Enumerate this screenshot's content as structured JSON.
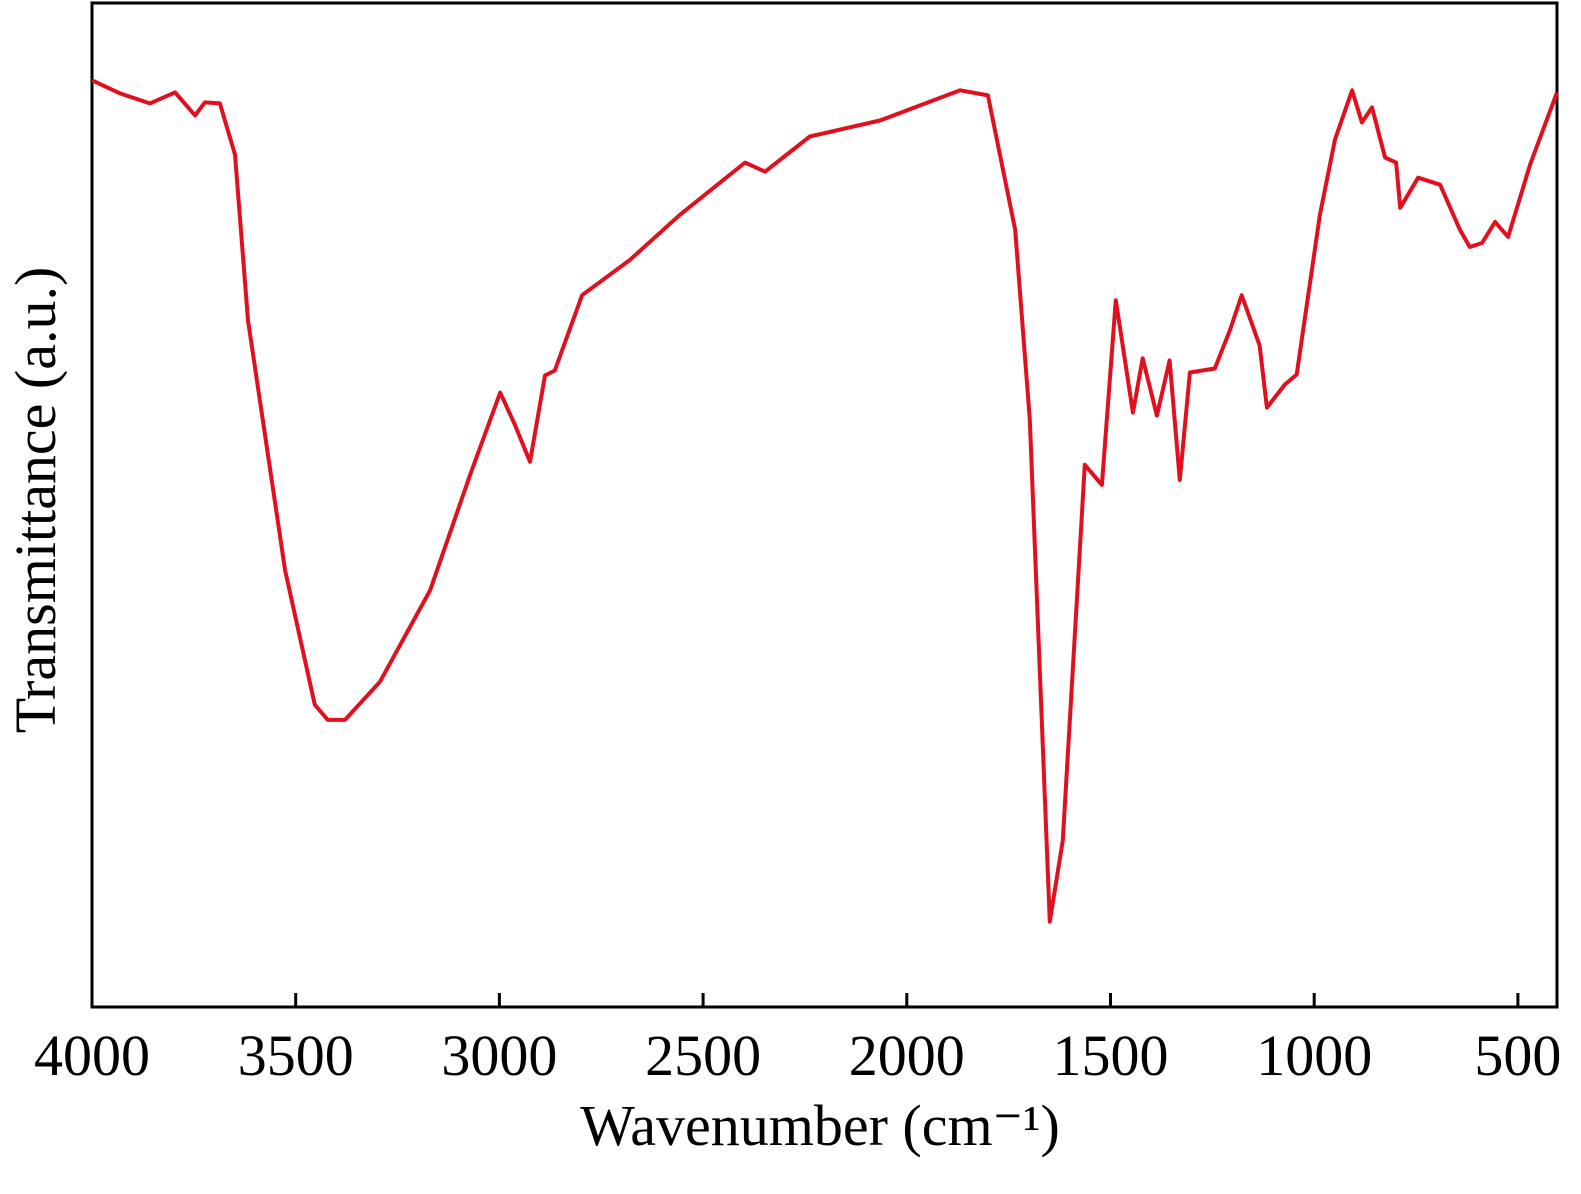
{
  "chart_data": {
    "type": "line",
    "x_label": "Wavenumber (cm⁻¹)",
    "y_label": "Transmittance (a.u.)",
    "xlim": [
      4000,
      404
    ],
    "ylim": [
      0,
      100
    ],
    "xticks": [
      4000,
      3500,
      3000,
      2500,
      2000,
      1500,
      1000,
      500
    ],
    "series": [
      {
        "color": "#e0101e",
        "x": [
          4000,
          3931,
          3858,
          3796,
          3747,
          3723,
          3686,
          3649,
          3617,
          3526,
          3453,
          3421,
          3379,
          3293,
          3170,
          3072,
          2998,
          2962,
          2925,
          2888,
          2864,
          2797,
          2680,
          2557,
          2397,
          2348,
          2238,
          2066,
          1869,
          1801,
          1734,
          1698,
          1649,
          1617,
          1563,
          1521,
          1487,
          1445,
          1421,
          1386,
          1355,
          1330,
          1305,
          1244,
          1207,
          1178,
          1134,
          1116,
          1072,
          1043,
          986,
          949,
          907,
          883,
          858,
          826,
          799,
          789,
          745,
          691,
          642,
          618,
          588,
          556,
          524,
          470,
          404
        ],
        "values": [
          92.3,
          91.0,
          90.0,
          91.1,
          88.8,
          90.1,
          90.0,
          84.9,
          68.4,
          43.5,
          30.1,
          28.6,
          28.6,
          32.4,
          41.5,
          53.0,
          61.2,
          58.0,
          54.3,
          62.9,
          63.4,
          70.9,
          74.4,
          78.9,
          84.1,
          83.2,
          86.7,
          88.3,
          91.3,
          90.8,
          77.4,
          58.5,
          8.5,
          16.6,
          54.0,
          52.0,
          70.4,
          59.2,
          64.6,
          58.9,
          64.4,
          52.5,
          63.2,
          63.6,
          67.4,
          70.9,
          65.9,
          59.7,
          62.0,
          63.0,
          78.9,
          86.4,
          91.3,
          88.1,
          89.6,
          84.6,
          84.1,
          79.6,
          82.6,
          81.9,
          77.4,
          75.7,
          76.1,
          78.2,
          76.7,
          83.9,
          91.1
        ]
      }
    ]
  }
}
